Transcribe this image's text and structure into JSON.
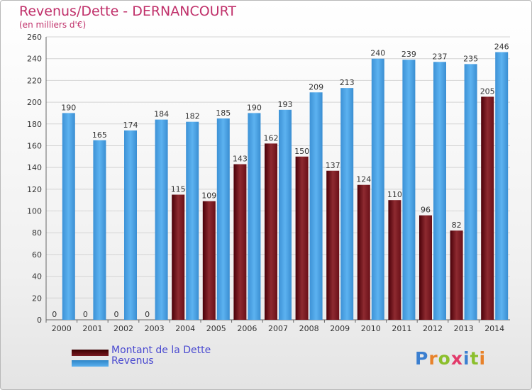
{
  "header": {
    "title": "Revenus/Dette - DERNANCOURT",
    "subtitle": "(en milliers d'€)"
  },
  "colors": {
    "dette": "#7a1a22",
    "revenus": "#4aa2e6",
    "title": "#c0306a",
    "legend_text": "#4a4ad0"
  },
  "legend": {
    "dette_label": "Montant de la Dette",
    "revenus_label": "Revenus"
  },
  "logo": {
    "text": "Proxiti"
  },
  "chart_data": {
    "type": "bar",
    "categories": [
      "2000",
      "2001",
      "2002",
      "2003",
      "2004",
      "2005",
      "2006",
      "2007",
      "2008",
      "2009",
      "2010",
      "2011",
      "2012",
      "2013",
      "2014"
    ],
    "series": [
      {
        "name": "Montant de la Dette",
        "values": [
          0,
          0,
          0,
          0,
          115,
          109,
          143,
          162,
          150,
          137,
          124,
          110,
          96,
          82,
          205
        ]
      },
      {
        "name": "Revenus",
        "values": [
          190,
          165,
          174,
          184,
          182,
          185,
          190,
          193,
          209,
          213,
          240,
          239,
          237,
          235,
          246
        ]
      }
    ],
    "ylim": [
      0,
      260
    ],
    "yticks": [
      0,
      20,
      40,
      60,
      80,
      100,
      120,
      140,
      160,
      180,
      200,
      220,
      240,
      260
    ],
    "grid": true,
    "legend_position": "bottom-left"
  }
}
